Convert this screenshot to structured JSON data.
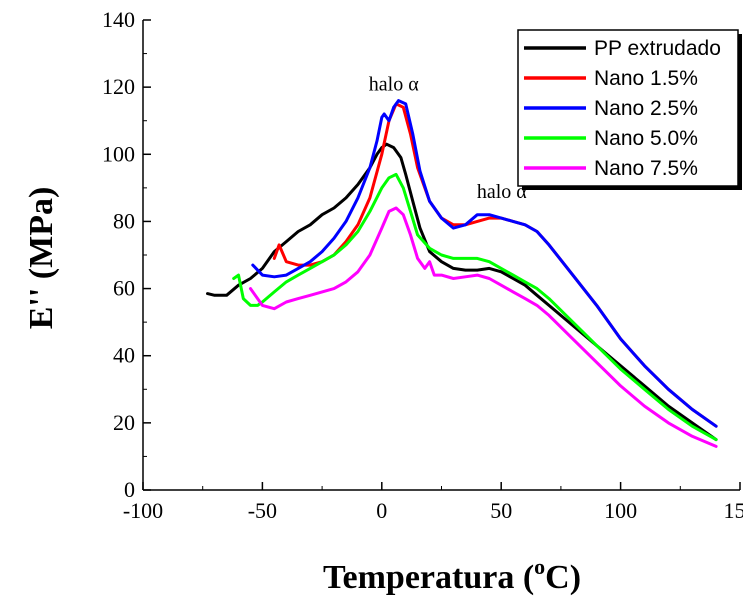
{
  "chart_data": {
    "type": "line",
    "title": "",
    "xlabel_main": "Temperatura (",
    "xlabel_sup": "o",
    "xlabel_end": "C)",
    "ylabel": "E'' (MPa)",
    "xlim": [
      -100,
      150
    ],
    "ylim": [
      0,
      140
    ],
    "xticks": [
      -100,
      -50,
      0,
      50,
      100,
      150
    ],
    "yticks": [
      0,
      20,
      40,
      60,
      80,
      100,
      120,
      140
    ],
    "legend_position": "top-right",
    "annotations": [
      {
        "text": "halo α",
        "x": 5,
        "y": 119
      },
      {
        "text": "halo α'",
        "x": 51,
        "y": 87
      }
    ],
    "series": [
      {
        "name": "PP extrudado",
        "color": "#000000",
        "x": [
          -73,
          -70,
          -65,
          -60,
          -55,
          -50,
          -45,
          -40,
          -35,
          -30,
          -25,
          -20,
          -15,
          -10,
          -5,
          -2,
          0,
          2,
          5,
          8,
          10,
          13,
          16,
          20,
          25,
          30,
          35,
          40,
          45,
          50,
          55,
          60,
          65,
          70,
          80,
          90,
          100,
          110,
          120,
          130,
          140
        ],
        "y": [
          58.5,
          58,
          58,
          61,
          63,
          66,
          71,
          74,
          77,
          79,
          82,
          84,
          87,
          91,
          96,
          100,
          102,
          103,
          102,
          99,
          94,
          86,
          78,
          71,
          68,
          66,
          65.5,
          65.5,
          66,
          65,
          63,
          61,
          58,
          55,
          49,
          43,
          37,
          31,
          25,
          20,
          15
        ]
      },
      {
        "name": "Nano 1.5%",
        "color": "#ff0000",
        "x": [
          -45,
          -43,
          -40,
          -35,
          -30,
          -25,
          -20,
          -15,
          -10,
          -5,
          0,
          3,
          6,
          9,
          12,
          15,
          20,
          25,
          30,
          35,
          40,
          45,
          50,
          55,
          60,
          65,
          70,
          80,
          90,
          100,
          110,
          120,
          130,
          140
        ],
        "y": [
          69,
          73,
          68,
          67,
          67,
          68,
          70,
          74,
          79,
          87,
          100,
          110,
          115,
          114,
          106,
          96,
          86,
          81,
          79,
          79,
          80,
          81,
          81,
          80,
          79,
          77,
          73,
          64,
          55,
          45,
          37,
          30,
          24,
          19
        ]
      },
      {
        "name": "Nano 2.5%",
        "color": "#0000ff",
        "x": [
          -54,
          -50,
          -45,
          -40,
          -35,
          -30,
          -25,
          -20,
          -15,
          -10,
          -5,
          -2,
          0,
          1,
          3,
          5,
          7,
          10,
          13,
          16,
          20,
          25,
          30,
          35,
          40,
          45,
          50,
          55,
          60,
          65,
          70,
          80,
          90,
          100,
          110,
          120,
          130,
          140
        ],
        "y": [
          67,
          64,
          63.5,
          64,
          66,
          68,
          71,
          75,
          80,
          87,
          96,
          104,
          111,
          112,
          110,
          114,
          116,
          115,
          106,
          95,
          86,
          81,
          78,
          79,
          82,
          82,
          81,
          80,
          79,
          77,
          73,
          64,
          55,
          45,
          37,
          30,
          24,
          19
        ]
      },
      {
        "name": "Nano 5.0%",
        "color": "#00ff00",
        "x": [
          -62,
          -60,
          -58,
          -55,
          -52,
          -50,
          -45,
          -40,
          -35,
          -30,
          -25,
          -20,
          -15,
          -10,
          -5,
          0,
          3,
          6,
          9,
          12,
          15,
          20,
          25,
          30,
          35,
          40,
          45,
          50,
          55,
          60,
          65,
          70,
          80,
          90,
          100,
          110,
          120,
          130,
          140
        ],
        "y": [
          63,
          64,
          57,
          55,
          55,
          56,
          59,
          62,
          64,
          66,
          68,
          70,
          73,
          77,
          83,
          90,
          93,
          94,
          90,
          83,
          76,
          72,
          70,
          69,
          69,
          69,
          68,
          66,
          64,
          62,
          60,
          57,
          50,
          43,
          36,
          30,
          24,
          19,
          15
        ]
      },
      {
        "name": "Nano 7.5%",
        "color": "#ff00ff",
        "x": [
          -55,
          -52,
          -50,
          -45,
          -40,
          -35,
          -30,
          -25,
          -20,
          -15,
          -10,
          -5,
          0,
          3,
          6,
          9,
          12,
          15,
          18,
          20,
          22,
          25,
          30,
          35,
          40,
          45,
          50,
          55,
          60,
          65,
          70,
          80,
          90,
          100,
          110,
          120,
          130,
          140
        ],
        "y": [
          60,
          57,
          55,
          54,
          56,
          57,
          58,
          59,
          60,
          62,
          65,
          70,
          78,
          83,
          84,
          82,
          76,
          69,
          66,
          68,
          64,
          64,
          63,
          63.5,
          64,
          63,
          61,
          59,
          57,
          55,
          52,
          45,
          38,
          31,
          25,
          20,
          16,
          13
        ]
      }
    ]
  }
}
